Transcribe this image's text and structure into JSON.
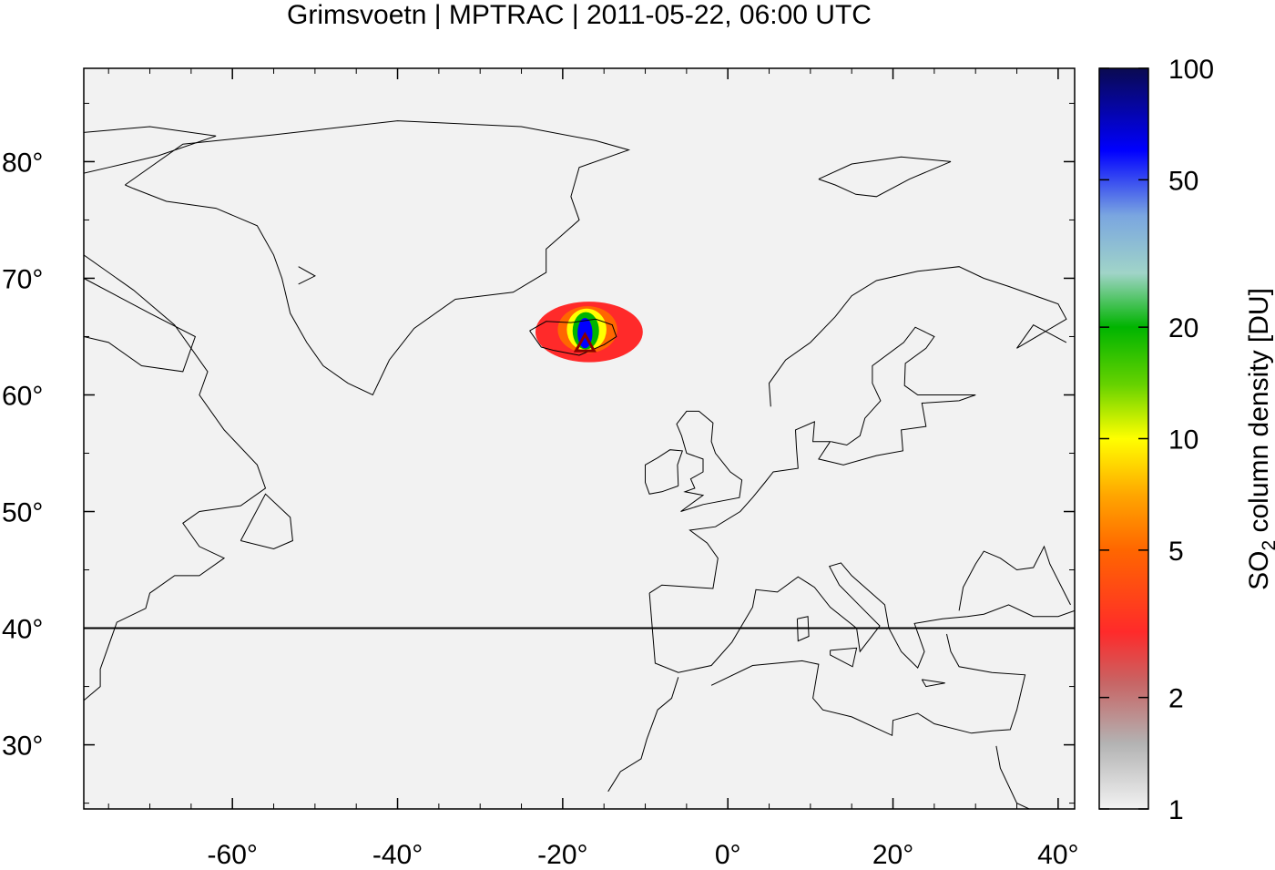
{
  "title": "Grimsvoetn | MPTRAC | 2011-05-22, 06:00 UTC",
  "map": {
    "background_color": "#f2f2f2",
    "lon_range": [
      -78,
      42
    ],
    "lat_range": [
      24.5,
      88
    ],
    "reference_line_lat": 40,
    "x_ticks": [
      {
        "value": -60,
        "label": "-60°"
      },
      {
        "value": -40,
        "label": "-40°"
      },
      {
        "value": -20,
        "label": "-20°"
      },
      {
        "value": 0,
        "label": "0°"
      },
      {
        "value": 20,
        "label": "20°"
      },
      {
        "value": 40,
        "label": "40°"
      }
    ],
    "y_ticks": [
      {
        "value": 80,
        "label": "80°"
      },
      {
        "value": 70,
        "label": "70°"
      },
      {
        "value": 60,
        "label": "60°"
      },
      {
        "value": 50,
        "label": "50°"
      },
      {
        "value": 40,
        "label": "40°"
      },
      {
        "value": 30,
        "label": "30°"
      }
    ],
    "volcano": {
      "name": "Grimsvoetn",
      "lon": -17.3,
      "lat": 64.4,
      "marker": "triangle-icon",
      "color": "#8b0000"
    },
    "plume": [
      {
        "lon": -16.8,
        "lat": 65.4,
        "rx": 6.5,
        "ry": 2.6,
        "value": 3
      },
      {
        "lon": -17.0,
        "lat": 65.6,
        "rx": 3.6,
        "ry": 2.0,
        "value": 5
      },
      {
        "lon": -17.1,
        "lat": 65.6,
        "rx": 2.4,
        "ry": 1.8,
        "value": 10
      },
      {
        "lon": -17.2,
        "lat": 65.5,
        "rx": 1.6,
        "ry": 1.6,
        "value": 20
      },
      {
        "lon": -17.3,
        "lat": 65.3,
        "rx": 0.9,
        "ry": 1.3,
        "value": 60
      }
    ]
  },
  "colorbar": {
    "label_main": "SO",
    "label_sub": "2",
    "label_rest": " column density [DU]",
    "scale": "log",
    "range": [
      1,
      100
    ],
    "ticks": [
      {
        "value": 1,
        "label": "1"
      },
      {
        "value": 2,
        "label": "2"
      },
      {
        "value": 5,
        "label": "5"
      },
      {
        "value": 10,
        "label": "10"
      },
      {
        "value": 20,
        "label": "20"
      },
      {
        "value": 50,
        "label": "50"
      },
      {
        "value": 100,
        "label": "100"
      }
    ],
    "stops": [
      {
        "value": 1,
        "color": "#f2f2f2"
      },
      {
        "value": 1.5,
        "color": "#b3b3b3"
      },
      {
        "value": 2.2,
        "color": "#c86464"
      },
      {
        "value": 3.0,
        "color": "#ff2a2a"
      },
      {
        "value": 5,
        "color": "#ff6600"
      },
      {
        "value": 7,
        "color": "#ffa500"
      },
      {
        "value": 10,
        "color": "#ffff00"
      },
      {
        "value": 14,
        "color": "#66d200"
      },
      {
        "value": 20,
        "color": "#00b400"
      },
      {
        "value": 28,
        "color": "#a0d4c8"
      },
      {
        "value": 40,
        "color": "#7aa6e0"
      },
      {
        "value": 60,
        "color": "#0000ff"
      },
      {
        "value": 100,
        "color": "#0a0a50"
      }
    ]
  }
}
